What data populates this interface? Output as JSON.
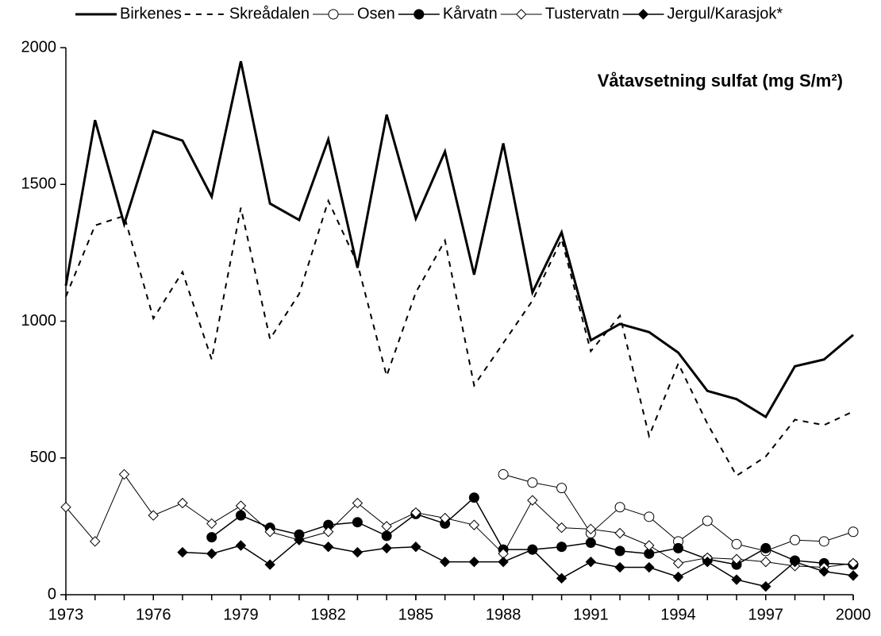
{
  "chart_data": {
    "type": "line",
    "title": "Våtavsetning sulfat (mg S/m²)",
    "x": [
      1973,
      1974,
      1975,
      1976,
      1977,
      1978,
      1979,
      1980,
      1981,
      1982,
      1983,
      1984,
      1985,
      1986,
      1987,
      1988,
      1989,
      1990,
      1991,
      1992,
      1993,
      1994,
      1995,
      1996,
      1997,
      1998,
      1999,
      2000
    ],
    "xlim": [
      1973,
      2000
    ],
    "xticks": [
      1973,
      1976,
      1979,
      1982,
      1985,
      1988,
      1991,
      1994,
      1997,
      2000
    ],
    "ylim": [
      0,
      2000
    ],
    "yticks": [
      0,
      500,
      1000,
      1500,
      2000
    ],
    "grid": false,
    "legend": "top",
    "series": [
      {
        "name": "Birkenes",
        "color": "#000000",
        "dash": "solid",
        "width": 3,
        "marker": "none",
        "values": [
          1130,
          1735,
          1355,
          1695,
          1660,
          1455,
          1950,
          1430,
          1370,
          1665,
          1195,
          1755,
          1375,
          1620,
          1170,
          1650,
          1105,
          1325,
          930,
          990,
          960,
          885,
          745,
          715,
          650,
          835,
          860,
          950
        ]
      },
      {
        "name": "Skreådalen",
        "color": "#000000",
        "dash": "dashed",
        "width": 2,
        "marker": "none",
        "values": [
          1090,
          1350,
          1385,
          1010,
          1180,
          860,
          1415,
          935,
          1100,
          1440,
          1210,
          800,
          1105,
          1295,
          765,
          920,
          1075,
          1300,
          890,
          1020,
          580,
          845,
          625,
          435,
          505,
          640,
          620,
          670
        ]
      },
      {
        "name": "Osen",
        "color": "#000000",
        "dash": "solid",
        "width": 1,
        "marker": "open-circle",
        "values": [
          null,
          null,
          null,
          null,
          null,
          null,
          null,
          null,
          null,
          null,
          null,
          null,
          null,
          null,
          null,
          440,
          410,
          390,
          225,
          320,
          285,
          195,
          270,
          185,
          160,
          200,
          195,
          230
        ]
      },
      {
        "name": "Kårvatn",
        "color": "#000000",
        "dash": "solid",
        "width": 1.5,
        "marker": "filled-circle",
        "values": [
          null,
          null,
          null,
          null,
          null,
          210,
          290,
          245,
          220,
          255,
          265,
          215,
          295,
          260,
          355,
          165,
          165,
          175,
          190,
          160,
          150,
          170,
          130,
          110,
          170,
          125,
          115,
          110
        ]
      },
      {
        "name": "Tustervatn",
        "color": "#000000",
        "dash": "solid",
        "width": 1,
        "marker": "open-diamond",
        "values": [
          320,
          195,
          440,
          290,
          335,
          260,
          325,
          230,
          200,
          230,
          335,
          250,
          300,
          280,
          255,
          150,
          345,
          245,
          240,
          225,
          180,
          115,
          135,
          130,
          120,
          105,
          100,
          115
        ]
      },
      {
        "name": "Jergul/Karasjok*",
        "color": "#000000",
        "dash": "solid",
        "width": 1.5,
        "marker": "filled-diamond",
        "values": [
          null,
          null,
          null,
          null,
          155,
          150,
          180,
          110,
          200,
          175,
          155,
          170,
          175,
          120,
          120,
          120,
          165,
          60,
          120,
          100,
          100,
          65,
          120,
          55,
          30,
          120,
          85,
          70
        ]
      }
    ]
  }
}
